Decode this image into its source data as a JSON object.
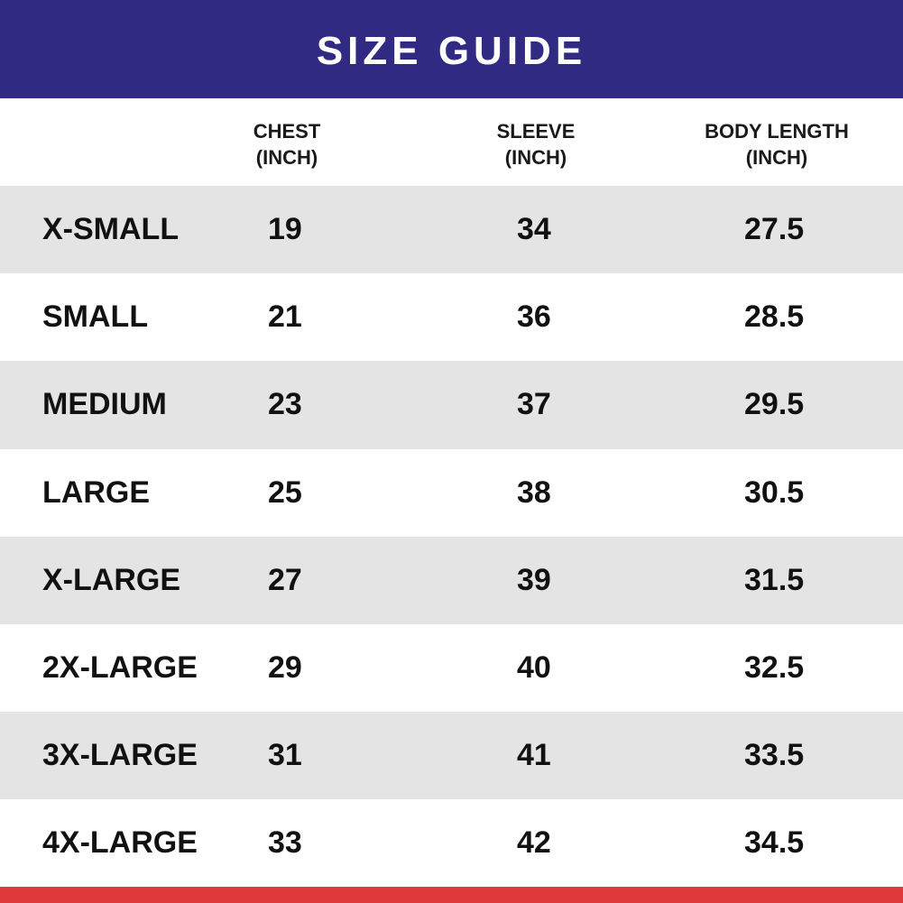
{
  "title": "SIZE GUIDE",
  "columns": [
    {
      "line1": "CHEST",
      "line2": "(INCH)"
    },
    {
      "line1": "SLEEVE",
      "line2": "(INCH)"
    },
    {
      "line1": "BODY LENGTH",
      "line2": "(INCH)"
    }
  ],
  "rows": [
    {
      "size": "X-SMALL",
      "chest": "19",
      "sleeve": "34",
      "body": "27.5"
    },
    {
      "size": "SMALL",
      "chest": "21",
      "sleeve": "36",
      "body": "28.5"
    },
    {
      "size": "MEDIUM",
      "chest": "23",
      "sleeve": "37",
      "body": "29.5"
    },
    {
      "size": "LARGE",
      "chest": "25",
      "sleeve": "38",
      "body": "30.5"
    },
    {
      "size": "X-LARGE",
      "chest": "27",
      "sleeve": "39",
      "body": "31.5"
    },
    {
      "size": "2X-LARGE",
      "chest": "29",
      "sleeve": "40",
      "body": "32.5"
    },
    {
      "size": "3X-LARGE",
      "chest": "31",
      "sleeve": "41",
      "body": "33.5"
    },
    {
      "size": "4X-LARGE",
      "chest": "33",
      "sleeve": "42",
      "body": "34.5"
    }
  ],
  "colors": {
    "banner": "#312a83",
    "row_shade": "#e4e4e4",
    "bottom_bar": "#e03a3a"
  }
}
